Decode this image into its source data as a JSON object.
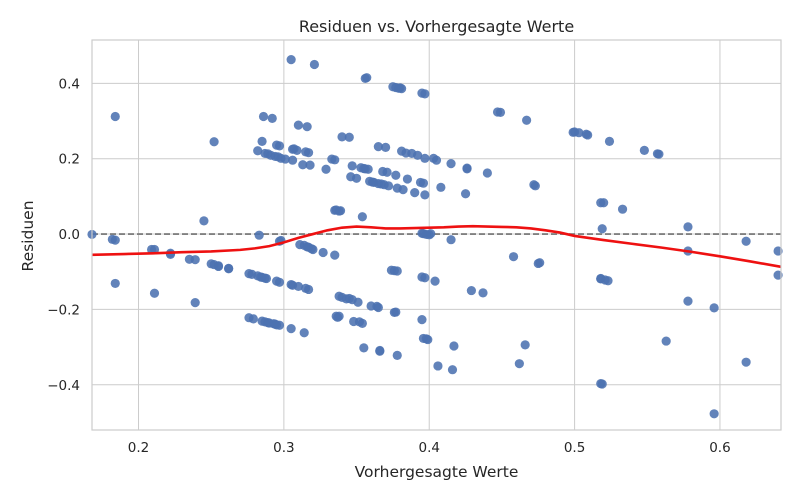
{
  "chart_data": {
    "type": "scatter",
    "title": "Residuen vs. Vorhergesagte Werte",
    "xlabel": "Vorhergesagte Werte",
    "ylabel": "Residuen",
    "xlim": [
      0.168,
      0.642
    ],
    "ylim": [
      -0.52,
      0.515
    ],
    "xticks": [
      0.2,
      0.3,
      0.4,
      0.5,
      0.6
    ],
    "yticks": [
      -0.4,
      -0.2,
      0.0,
      0.2,
      0.4
    ],
    "xtick_labels": [
      "0.2",
      "0.3",
      "0.4",
      "0.5",
      "0.6"
    ],
    "ytick_labels": [
      "−0.4",
      "−0.2",
      "0.0",
      "0.2",
      "0.4"
    ],
    "grid": true,
    "reference_line_y": 0,
    "colors": {
      "points": "#4c72b0",
      "smooth_line": "#ee1111",
      "reference_line": "#808080",
      "grid": "#cccccc",
      "axes_frame": "#cccccc"
    },
    "points": [
      [
        0.168,
        -0.001
      ],
      [
        0.182,
        -0.014
      ],
      [
        0.184,
        -0.016
      ],
      [
        0.184,
        -0.131
      ],
      [
        0.184,
        0.312
      ],
      [
        0.209,
        -0.041
      ],
      [
        0.211,
        -0.041
      ],
      [
        0.211,
        -0.157
      ],
      [
        0.222,
        -0.051
      ],
      [
        0.222,
        -0.054
      ],
      [
        0.235,
        -0.067
      ],
      [
        0.239,
        -0.068
      ],
      [
        0.239,
        -0.182
      ],
      [
        0.245,
        0.035
      ],
      [
        0.25,
        -0.079
      ],
      [
        0.252,
        -0.081
      ],
      [
        0.252,
        0.245
      ],
      [
        0.255,
        -0.084
      ],
      [
        0.255,
        -0.086
      ],
      [
        0.262,
        -0.091
      ],
      [
        0.262,
        -0.092
      ],
      [
        0.276,
        -0.105
      ],
      [
        0.276,
        -0.222
      ],
      [
        0.278,
        -0.107
      ],
      [
        0.279,
        -0.225
      ],
      [
        0.282,
        -0.111
      ],
      [
        0.282,
        0.221
      ],
      [
        0.283,
        -0.003
      ],
      [
        0.284,
        -0.114
      ],
      [
        0.285,
        -0.115
      ],
      [
        0.285,
        -0.231
      ],
      [
        0.285,
        0.246
      ],
      [
        0.286,
        0.312
      ],
      [
        0.287,
        -0.117
      ],
      [
        0.287,
        -0.233
      ],
      [
        0.287,
        0.214
      ],
      [
        0.288,
        -0.118
      ],
      [
        0.289,
        -0.235
      ],
      [
        0.289,
        0.213
      ],
      [
        0.29,
        -0.236
      ],
      [
        0.291,
        0.209
      ],
      [
        0.292,
        0.307
      ],
      [
        0.293,
        -0.238
      ],
      [
        0.294,
        -0.239
      ],
      [
        0.294,
        0.206
      ],
      [
        0.295,
        -0.125
      ],
      [
        0.295,
        -0.241
      ],
      [
        0.295,
        0.236
      ],
      [
        0.296,
        0.205
      ],
      [
        0.297,
        -0.128
      ],
      [
        0.297,
        -0.242
      ],
      [
        0.297,
        -0.019
      ],
      [
        0.297,
        0.234
      ],
      [
        0.298,
        -0.017
      ],
      [
        0.298,
        0.201
      ],
      [
        0.301,
        0.199
      ],
      [
        0.305,
        -0.134
      ],
      [
        0.305,
        -0.251
      ],
      [
        0.305,
        0.463
      ],
      [
        0.306,
        -0.136
      ],
      [
        0.306,
        0.196
      ],
      [
        0.306,
        0.225
      ],
      [
        0.307,
        0.226
      ],
      [
        0.309,
        0.222
      ],
      [
        0.31,
        -0.139
      ],
      [
        0.31,
        0.289
      ],
      [
        0.311,
        -0.028
      ],
      [
        0.313,
        0.184
      ],
      [
        0.314,
        -0.03
      ],
      [
        0.314,
        -0.262
      ],
      [
        0.315,
        -0.144
      ],
      [
        0.315,
        0.218
      ],
      [
        0.316,
        -0.034
      ],
      [
        0.316,
        0.285
      ],
      [
        0.317,
        -0.147
      ],
      [
        0.317,
        -0.035
      ],
      [
        0.317,
        0.216
      ],
      [
        0.318,
        0.183
      ],
      [
        0.319,
        -0.039
      ],
      [
        0.32,
        -0.041
      ],
      [
        0.321,
        0.45
      ],
      [
        0.327,
        -0.049
      ],
      [
        0.329,
        0.172
      ],
      [
        0.333,
        0.199
      ],
      [
        0.335,
        -0.056
      ],
      [
        0.335,
        0.063
      ],
      [
        0.335,
        0.197
      ],
      [
        0.336,
        -0.218
      ],
      [
        0.336,
        0.064
      ],
      [
        0.337,
        -0.221
      ],
      [
        0.338,
        -0.218
      ],
      [
        0.338,
        -0.165
      ],
      [
        0.338,
        0.061
      ],
      [
        0.339,
        0.062
      ],
      [
        0.34,
        -0.168
      ],
      [
        0.34,
        0.258
      ],
      [
        0.343,
        -0.172
      ],
      [
        0.345,
        -0.171
      ],
      [
        0.345,
        0.257
      ],
      [
        0.346,
        0.152
      ],
      [
        0.347,
        -0.174
      ],
      [
        0.347,
        0.181
      ],
      [
        0.348,
        -0.232
      ],
      [
        0.35,
        0.148
      ],
      [
        0.351,
        -0.181
      ],
      [
        0.352,
        -0.233
      ],
      [
        0.353,
        0.176
      ],
      [
        0.354,
        0.046
      ],
      [
        0.354,
        -0.237
      ],
      [
        0.355,
        0.174
      ],
      [
        0.355,
        -0.302
      ],
      [
        0.356,
        0.173
      ],
      [
        0.356,
        0.413
      ],
      [
        0.357,
        0.415
      ],
      [
        0.358,
        0.172
      ],
      [
        0.359,
        0.14
      ],
      [
        0.36,
        -0.191
      ],
      [
        0.361,
        0.138
      ],
      [
        0.362,
        0.137
      ],
      [
        0.364,
        -0.192
      ],
      [
        0.365,
        -0.195
      ],
      [
        0.365,
        0.134
      ],
      [
        0.365,
        0.232
      ],
      [
        0.366,
        -0.309
      ],
      [
        0.366,
        -0.311
      ],
      [
        0.367,
        0.133
      ],
      [
        0.368,
        0.166
      ],
      [
        0.369,
        0.131
      ],
      [
        0.37,
        0.23
      ],
      [
        0.371,
        0.164
      ],
      [
        0.372,
        0.128
      ],
      [
        0.374,
        -0.096
      ],
      [
        0.375,
        0.391
      ],
      [
        0.376,
        -0.208
      ],
      [
        0.376,
        -0.097
      ],
      [
        0.377,
        -0.207
      ],
      [
        0.377,
        0.389
      ],
      [
        0.377,
        0.156
      ],
      [
        0.378,
        -0.098
      ],
      [
        0.378,
        0.122
      ],
      [
        0.378,
        -0.322
      ],
      [
        0.379,
        0.387
      ],
      [
        0.38,
        0.388
      ],
      [
        0.381,
        0.386
      ],
      [
        0.381,
        0.22
      ],
      [
        0.382,
        0.118
      ],
      [
        0.384,
        0.215
      ],
      [
        0.385,
        0.146
      ],
      [
        0.388,
        0.214
      ],
      [
        0.39,
        0.11
      ],
      [
        0.392,
        0.209
      ],
      [
        0.394,
        0.137
      ],
      [
        0.395,
        -0.114
      ],
      [
        0.395,
        -0.227
      ],
      [
        0.395,
        0.374
      ],
      [
        0.395,
        0.002
      ],
      [
        0.396,
        0.001
      ],
      [
        0.396,
        -0.277
      ],
      [
        0.396,
        0.135
      ],
      [
        0.397,
        0.104
      ],
      [
        0.397,
        -0.116
      ],
      [
        0.397,
        0.201
      ],
      [
        0.397,
        0.372
      ],
      [
        0.398,
        -0.001
      ],
      [
        0.398,
        -0.278
      ],
      [
        0.399,
        -0.28
      ],
      [
        0.4,
        -0.002
      ],
      [
        0.401,
        0.001
      ],
      [
        0.403,
        0.201
      ],
      [
        0.404,
        -0.125
      ],
      [
        0.405,
        0.196
      ],
      [
        0.406,
        -0.35
      ],
      [
        0.408,
        0.124
      ],
      [
        0.415,
        -0.015
      ],
      [
        0.415,
        0.187
      ],
      [
        0.416,
        -0.36
      ],
      [
        0.417,
        -0.297
      ],
      [
        0.425,
        0.107
      ],
      [
        0.426,
        0.175
      ],
      [
        0.426,
        0.173
      ],
      [
        0.429,
        -0.15
      ],
      [
        0.437,
        -0.156
      ],
      [
        0.44,
        0.162
      ],
      [
        0.447,
        0.324
      ],
      [
        0.449,
        0.323
      ],
      [
        0.458,
        -0.06
      ],
      [
        0.462,
        -0.344
      ],
      [
        0.466,
        -0.294
      ],
      [
        0.467,
        0.302
      ],
      [
        0.472,
        0.131
      ],
      [
        0.473,
        0.128
      ],
      [
        0.475,
        -0.078
      ],
      [
        0.476,
        -0.076
      ],
      [
        0.499,
        0.27
      ],
      [
        0.5,
        0.271
      ],
      [
        0.503,
        0.269
      ],
      [
        0.508,
        0.265
      ],
      [
        0.509,
        0.263
      ],
      [
        0.518,
        0.083
      ],
      [
        0.518,
        -0.118
      ],
      [
        0.518,
        -0.119
      ],
      [
        0.518,
        -0.397
      ],
      [
        0.519,
        -0.398
      ],
      [
        0.519,
        0.014
      ],
      [
        0.52,
        0.083
      ],
      [
        0.521,
        -0.122
      ],
      [
        0.523,
        -0.124
      ],
      [
        0.524,
        0.246
      ],
      [
        0.533,
        0.066
      ],
      [
        0.548,
        0.222
      ],
      [
        0.557,
        0.213
      ],
      [
        0.558,
        0.212
      ],
      [
        0.563,
        -0.284
      ],
      [
        0.578,
        0.019
      ],
      [
        0.578,
        -0.045
      ],
      [
        0.578,
        -0.178
      ],
      [
        0.596,
        -0.196
      ],
      [
        0.596,
        -0.477
      ],
      [
        0.618,
        -0.019
      ],
      [
        0.618,
        -0.34
      ],
      [
        0.64,
        -0.045
      ],
      [
        0.64,
        -0.109
      ]
    ],
    "smooth_line": [
      [
        0.168,
        -0.055
      ],
      [
        0.19,
        -0.053
      ],
      [
        0.21,
        -0.051
      ],
      [
        0.23,
        -0.048
      ],
      [
        0.25,
        -0.046
      ],
      [
        0.27,
        -0.042
      ],
      [
        0.28,
        -0.038
      ],
      [
        0.29,
        -0.032
      ],
      [
        0.3,
        -0.022
      ],
      [
        0.31,
        -0.01
      ],
      [
        0.32,
        0.0
      ],
      [
        0.33,
        0.01
      ],
      [
        0.34,
        0.017
      ],
      [
        0.35,
        0.02
      ],
      [
        0.36,
        0.018
      ],
      [
        0.37,
        0.015
      ],
      [
        0.38,
        0.015
      ],
      [
        0.39,
        0.016
      ],
      [
        0.4,
        0.017
      ],
      [
        0.41,
        0.018
      ],
      [
        0.42,
        0.02
      ],
      [
        0.43,
        0.021
      ],
      [
        0.44,
        0.02
      ],
      [
        0.45,
        0.019
      ],
      [
        0.46,
        0.018
      ],
      [
        0.47,
        0.015
      ],
      [
        0.48,
        0.01
      ],
      [
        0.49,
        0.004
      ],
      [
        0.5,
        -0.005
      ],
      [
        0.52,
        -0.016
      ],
      [
        0.54,
        -0.026
      ],
      [
        0.56,
        -0.036
      ],
      [
        0.58,
        -0.047
      ],
      [
        0.6,
        -0.059
      ],
      [
        0.62,
        -0.072
      ],
      [
        0.642,
        -0.087
      ]
    ]
  }
}
